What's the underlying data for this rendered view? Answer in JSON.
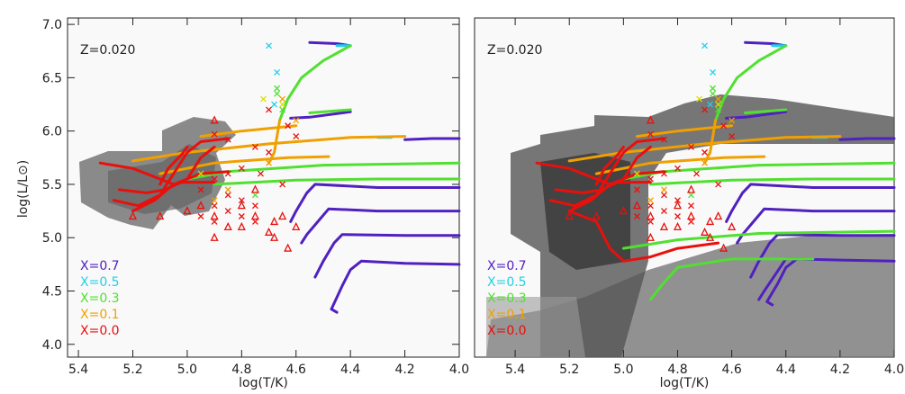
{
  "chart_data": [
    {
      "type": "line",
      "annotation": "Z=0.020",
      "xlabel": "log(T/K)",
      "ylabel": "log(L/L⊙)",
      "xlim": [
        5.44,
        4.0
      ],
      "ylim": [
        3.88,
        7.06
      ],
      "xticks": [
        5.4,
        5.2,
        {
          "value": 5,
          "label": "5.0"
        },
        4.8,
        4.6,
        4.4,
        4.2,
        {
          "value": 4,
          "label": "4.0"
        }
      ],
      "yticks": [
        {
          "value": 4,
          "label": "4.0"
        },
        4.5,
        {
          "value": 5,
          "label": "5.0"
        },
        5.5,
        {
          "value": 6,
          "label": "6.0"
        },
        6.5,
        {
          "value": 7,
          "label": "7.0"
        }
      ],
      "series": [
        {
          "name": "X=0.7",
          "color": "#5020c0",
          "x": [
            4.0,
            4.2,
            4.36,
            4.4,
            4.43,
            4.47,
            4.45,
            null,
            4.0,
            4.2,
            4.43,
            4.46,
            4.5,
            4.53,
            null,
            4.0,
            4.3,
            4.48,
            4.51,
            4.56,
            4.58,
            null,
            4.0,
            4.3,
            4.53,
            4.56,
            4.6,
            4.62,
            null,
            4.55,
            4.45,
            4.4,
            null,
            4.4,
            4.55,
            4.62,
            null,
            4.0,
            4.1,
            4.2
          ],
          "y": [
            4.75,
            4.76,
            4.78,
            4.7,
            4.55,
            4.33,
            4.3,
            null,
            5.02,
            5.02,
            5.03,
            4.95,
            4.78,
            4.63,
            null,
            5.25,
            5.25,
            5.27,
            5.18,
            5.03,
            4.95,
            null,
            5.47,
            5.47,
            5.5,
            5.42,
            5.25,
            5.15,
            null,
            6.83,
            6.82,
            6.8,
            null,
            6.18,
            6.13,
            6.12,
            null,
            5.93,
            5.93,
            5.92
          ]
        },
        {
          "name": "X=0.5",
          "color": "#20d0e8",
          "x": [
            4.45,
            4.4,
            null,
            4.3,
            4.25
          ],
          "y": [
            6.8,
            6.8,
            null,
            5.94,
            5.94
          ]
        },
        {
          "name": "X=0.3",
          "color": "#50e030",
          "x": [
            4.4,
            4.5,
            4.58,
            4.63,
            4.66,
            null,
            4.0,
            4.3,
            4.6,
            4.9,
            null,
            4.0,
            4.5,
            4.85,
            5.0,
            null,
            4.4,
            4.55
          ],
          "y": [
            6.8,
            6.66,
            6.5,
            6.3,
            6.1,
            null,
            5.55,
            5.55,
            5.54,
            5.5,
            null,
            5.7,
            5.68,
            5.62,
            5.55,
            null,
            6.2,
            6.17
          ]
        },
        {
          "name": "X=0.1",
          "color": "#f0a000",
          "x": [
            4.66,
            4.67,
            4.68,
            4.7,
            null,
            4.2,
            4.4,
            4.7,
            5.0,
            5.2,
            null,
            4.48,
            4.63,
            4.9,
            5.1,
            null,
            4.6,
            4.8,
            4.95
          ],
          "y": [
            6.1,
            5.95,
            5.8,
            5.7,
            null,
            5.95,
            5.94,
            5.88,
            5.8,
            5.72,
            null,
            5.76,
            5.75,
            5.7,
            5.6,
            null,
            6.05,
            6.0,
            5.95
          ]
        },
        {
          "name": "X=0.0",
          "color": "#e8100c",
          "x": [
            5.32,
            5.2,
            5.1,
            5.05,
            4.95,
            4.85,
            null,
            5.25,
            5.15,
            5.08,
            5.0,
            4.95,
            4.9,
            null,
            5.27,
            5.18,
            5.1,
            5.05,
            5.0,
            4.95,
            4.85,
            null,
            5.2,
            5.12,
            5.06,
            5.02,
            4.9,
            null,
            5.1,
            5.07,
            5.02,
            5.0
          ],
          "y": [
            5.7,
            5.65,
            5.55,
            5.5,
            5.6,
            5.62,
            null,
            5.45,
            5.42,
            5.45,
            5.55,
            5.75,
            5.85,
            null,
            5.35,
            5.3,
            5.4,
            5.6,
            5.8,
            5.9,
            5.93,
            null,
            5.25,
            5.35,
            5.48,
            5.52,
            5.52,
            null,
            5.5,
            5.65,
            5.78,
            5.85
          ]
        }
      ],
      "markers": [
        {
          "symbol": "cross",
          "color": "#e8100c",
          "x": [
            4.9,
            4.85,
            4.75,
            4.7,
            4.8,
            4.85,
            4.9,
            4.95,
            4.85,
            4.8,
            4.75,
            4.9,
            4.85,
            4.95,
            4.8,
            4.9,
            4.75,
            4.7,
            4.63,
            4.6,
            4.73,
            4.65
          ],
          "y": [
            5.97,
            5.92,
            5.85,
            5.8,
            5.65,
            5.6,
            5.55,
            5.45,
            5.4,
            5.35,
            5.3,
            5.3,
            5.25,
            5.2,
            5.2,
            5.15,
            5.15,
            6.2,
            6.05,
            5.95,
            5.6,
            5.5
          ]
        },
        {
          "symbol": "cross",
          "color": "#f0a000",
          "x": [
            4.65,
            4.6,
            4.7,
            4.85,
            4.9
          ],
          "y": [
            6.3,
            6.1,
            5.7,
            5.45,
            5.35
          ]
        },
        {
          "symbol": "cross",
          "color": "#d8e000",
          "x": [
            4.72,
            4.95,
            4.65
          ],
          "y": [
            6.3,
            5.6,
            6.25
          ]
        },
        {
          "symbol": "cross",
          "color": "#50e030",
          "x": [
            4.67,
            4.65,
            4.75,
            4.67
          ],
          "y": [
            6.4,
            6.2,
            5.4,
            6.35
          ]
        },
        {
          "symbol": "cross",
          "color": "#20d0e8",
          "x": [
            4.7,
            4.67,
            4.68
          ],
          "y": [
            6.8,
            6.55,
            6.25
          ]
        },
        {
          "symbol": "triangle",
          "color": "#e8100c",
          "x": [
            4.9,
            4.95,
            5.1,
            5.2,
            4.9,
            4.85,
            4.8,
            4.75,
            4.7,
            4.68,
            4.65,
            4.6,
            4.63,
            4.68,
            4.9,
            4.8,
            4.75,
            5.0
          ],
          "y": [
            6.1,
            5.3,
            5.2,
            5.2,
            5.2,
            5.1,
            5.1,
            5.2,
            5.05,
            5.15,
            5.2,
            5.1,
            4.9,
            5.0,
            5.0,
            5.3,
            5.45,
            5.25
          ]
        }
      ]
    },
    {
      "type": "line",
      "annotation": "Z=0.020",
      "xlabel": "log(T/K)",
      "xlim": [
        5.55,
        4.0
      ],
      "ylim": [
        3.88,
        7.06
      ],
      "xticks": [
        5.4,
        5.2,
        {
          "value": 5,
          "label": "5.0"
        },
        4.8,
        4.6,
        4.4,
        4.2,
        {
          "value": 4,
          "label": "4.0"
        }
      ],
      "series": [
        {
          "name": "X=0.7",
          "color": "#5020c0",
          "x": [
            4.0,
            4.2,
            4.36,
            4.4,
            4.43,
            4.47,
            4.45,
            null,
            4.0,
            4.2,
            4.43,
            4.46,
            4.5,
            4.53,
            null,
            4.0,
            4.3,
            4.48,
            4.51,
            4.56,
            4.58,
            null,
            4.0,
            4.3,
            4.53,
            4.56,
            4.6,
            4.62,
            null,
            4.55,
            4.45,
            4.4,
            null,
            4.4,
            4.55,
            4.62,
            null,
            4.0,
            4.1,
            4.2,
            null,
            4.3,
            4.4,
            4.44,
            4.48,
            4.5
          ],
          "y": [
            4.78,
            4.79,
            4.8,
            4.72,
            4.57,
            4.4,
            4.37,
            null,
            5.02,
            5.02,
            5.03,
            4.95,
            4.78,
            4.63,
            null,
            5.25,
            5.25,
            5.27,
            5.18,
            5.03,
            4.95,
            null,
            5.47,
            5.47,
            5.5,
            5.42,
            5.25,
            5.15,
            null,
            6.83,
            6.82,
            6.8,
            null,
            6.18,
            6.13,
            6.12,
            null,
            5.93,
            5.93,
            5.92,
            null,
            4.8,
            4.8,
            4.65,
            4.5,
            4.42
          ]
        },
        {
          "name": "X=0.5",
          "color": "#20d0e8",
          "x": [
            4.45,
            4.4,
            null,
            4.3,
            4.25
          ],
          "y": [
            6.8,
            6.8,
            null,
            5.94,
            5.94
          ]
        },
        {
          "name": "X=0.3",
          "color": "#50e030",
          "x": [
            4.4,
            4.5,
            4.58,
            4.63,
            4.66,
            null,
            4.0,
            4.3,
            4.6,
            4.9,
            null,
            4.0,
            4.5,
            4.85,
            5.0,
            null,
            4.4,
            4.55,
            null,
            4.3,
            4.6,
            4.8,
            4.86,
            4.9,
            null,
            4.0,
            4.5,
            4.8,
            5.0
          ],
          "y": [
            6.8,
            6.66,
            6.5,
            6.3,
            6.1,
            null,
            5.55,
            5.55,
            5.54,
            5.5,
            null,
            5.7,
            5.68,
            5.62,
            5.55,
            null,
            6.2,
            6.17,
            null,
            4.8,
            4.8,
            4.72,
            4.55,
            4.42,
            null,
            5.06,
            5.04,
            4.98,
            4.9
          ]
        },
        {
          "name": "X=0.1",
          "color": "#f0a000",
          "x": [
            4.66,
            4.67,
            4.68,
            4.7,
            null,
            4.2,
            4.4,
            4.7,
            5.0,
            5.2,
            null,
            4.48,
            4.63,
            4.9,
            5.1,
            null,
            4.6,
            4.8,
            4.95
          ],
          "y": [
            6.1,
            5.95,
            5.8,
            5.7,
            null,
            5.95,
            5.94,
            5.88,
            5.8,
            5.72,
            null,
            5.76,
            5.75,
            5.7,
            5.6,
            null,
            6.05,
            6.0,
            5.95
          ]
        },
        {
          "name": "X=0.0",
          "color": "#e8100c",
          "x": [
            5.32,
            5.2,
            5.1,
            5.05,
            4.95,
            4.85,
            null,
            5.25,
            5.15,
            5.08,
            5.0,
            4.95,
            4.9,
            null,
            5.27,
            5.18,
            5.1,
            5.05,
            5.0,
            4.95,
            4.85,
            null,
            5.2,
            5.12,
            5.06,
            5.02,
            4.9,
            null,
            5.1,
            5.07,
            5.02,
            5.0,
            null,
            5.2,
            5.1,
            5.05,
            5.0,
            4.9,
            4.8,
            4.65
          ],
          "y": [
            5.7,
            5.65,
            5.55,
            5.5,
            5.6,
            5.62,
            null,
            5.45,
            5.42,
            5.45,
            5.55,
            5.75,
            5.85,
            null,
            5.35,
            5.3,
            5.4,
            5.6,
            5.8,
            5.9,
            5.93,
            null,
            5.25,
            5.35,
            5.48,
            5.52,
            5.52,
            null,
            5.5,
            5.65,
            5.78,
            5.85,
            null,
            5.25,
            5.15,
            4.9,
            4.78,
            4.82,
            4.9,
            4.95
          ]
        }
      ],
      "markers": [
        {
          "symbol": "cross",
          "color": "#e8100c",
          "x": [
            4.9,
            4.85,
            4.75,
            4.7,
            4.8,
            4.85,
            4.9,
            4.95,
            4.85,
            4.8,
            4.75,
            4.9,
            4.85,
            4.95,
            4.8,
            4.9,
            4.75,
            4.7,
            4.63,
            4.6,
            4.73,
            4.65
          ],
          "y": [
            5.97,
            5.92,
            5.85,
            5.8,
            5.65,
            5.6,
            5.55,
            5.45,
            5.4,
            5.35,
            5.3,
            5.3,
            5.25,
            5.2,
            5.2,
            5.15,
            5.15,
            6.2,
            6.05,
            5.95,
            5.6,
            5.5
          ]
        },
        {
          "symbol": "cross",
          "color": "#f0a000",
          "x": [
            4.65,
            4.6,
            4.7,
            4.85,
            4.9
          ],
          "y": [
            6.3,
            6.1,
            5.7,
            5.45,
            5.35
          ]
        },
        {
          "symbol": "cross",
          "color": "#d8e000",
          "x": [
            4.72,
            4.95,
            4.65
          ],
          "y": [
            6.3,
            5.6,
            6.25
          ]
        },
        {
          "symbol": "cross",
          "color": "#50e030",
          "x": [
            4.67,
            4.65,
            4.75,
            4.67
          ],
          "y": [
            6.4,
            6.2,
            5.4,
            6.35
          ]
        },
        {
          "symbol": "cross",
          "color": "#20d0e8",
          "x": [
            4.7,
            4.67,
            4.68
          ],
          "y": [
            6.8,
            6.55,
            6.25
          ]
        },
        {
          "symbol": "triangle",
          "color": "#e8100c",
          "x": [
            4.9,
            4.95,
            5.1,
            5.2,
            4.9,
            4.85,
            4.8,
            4.75,
            4.7,
            4.68,
            4.65,
            4.6,
            4.63,
            4.68,
            4.9,
            4.8,
            4.75,
            5.0
          ],
          "y": [
            6.1,
            5.3,
            5.2,
            5.2,
            5.2,
            5.1,
            5.1,
            5.2,
            5.05,
            5.15,
            5.2,
            5.1,
            4.9,
            5.0,
            5.0,
            5.3,
            5.45,
            5.25
          ]
        }
      ]
    }
  ]
}
